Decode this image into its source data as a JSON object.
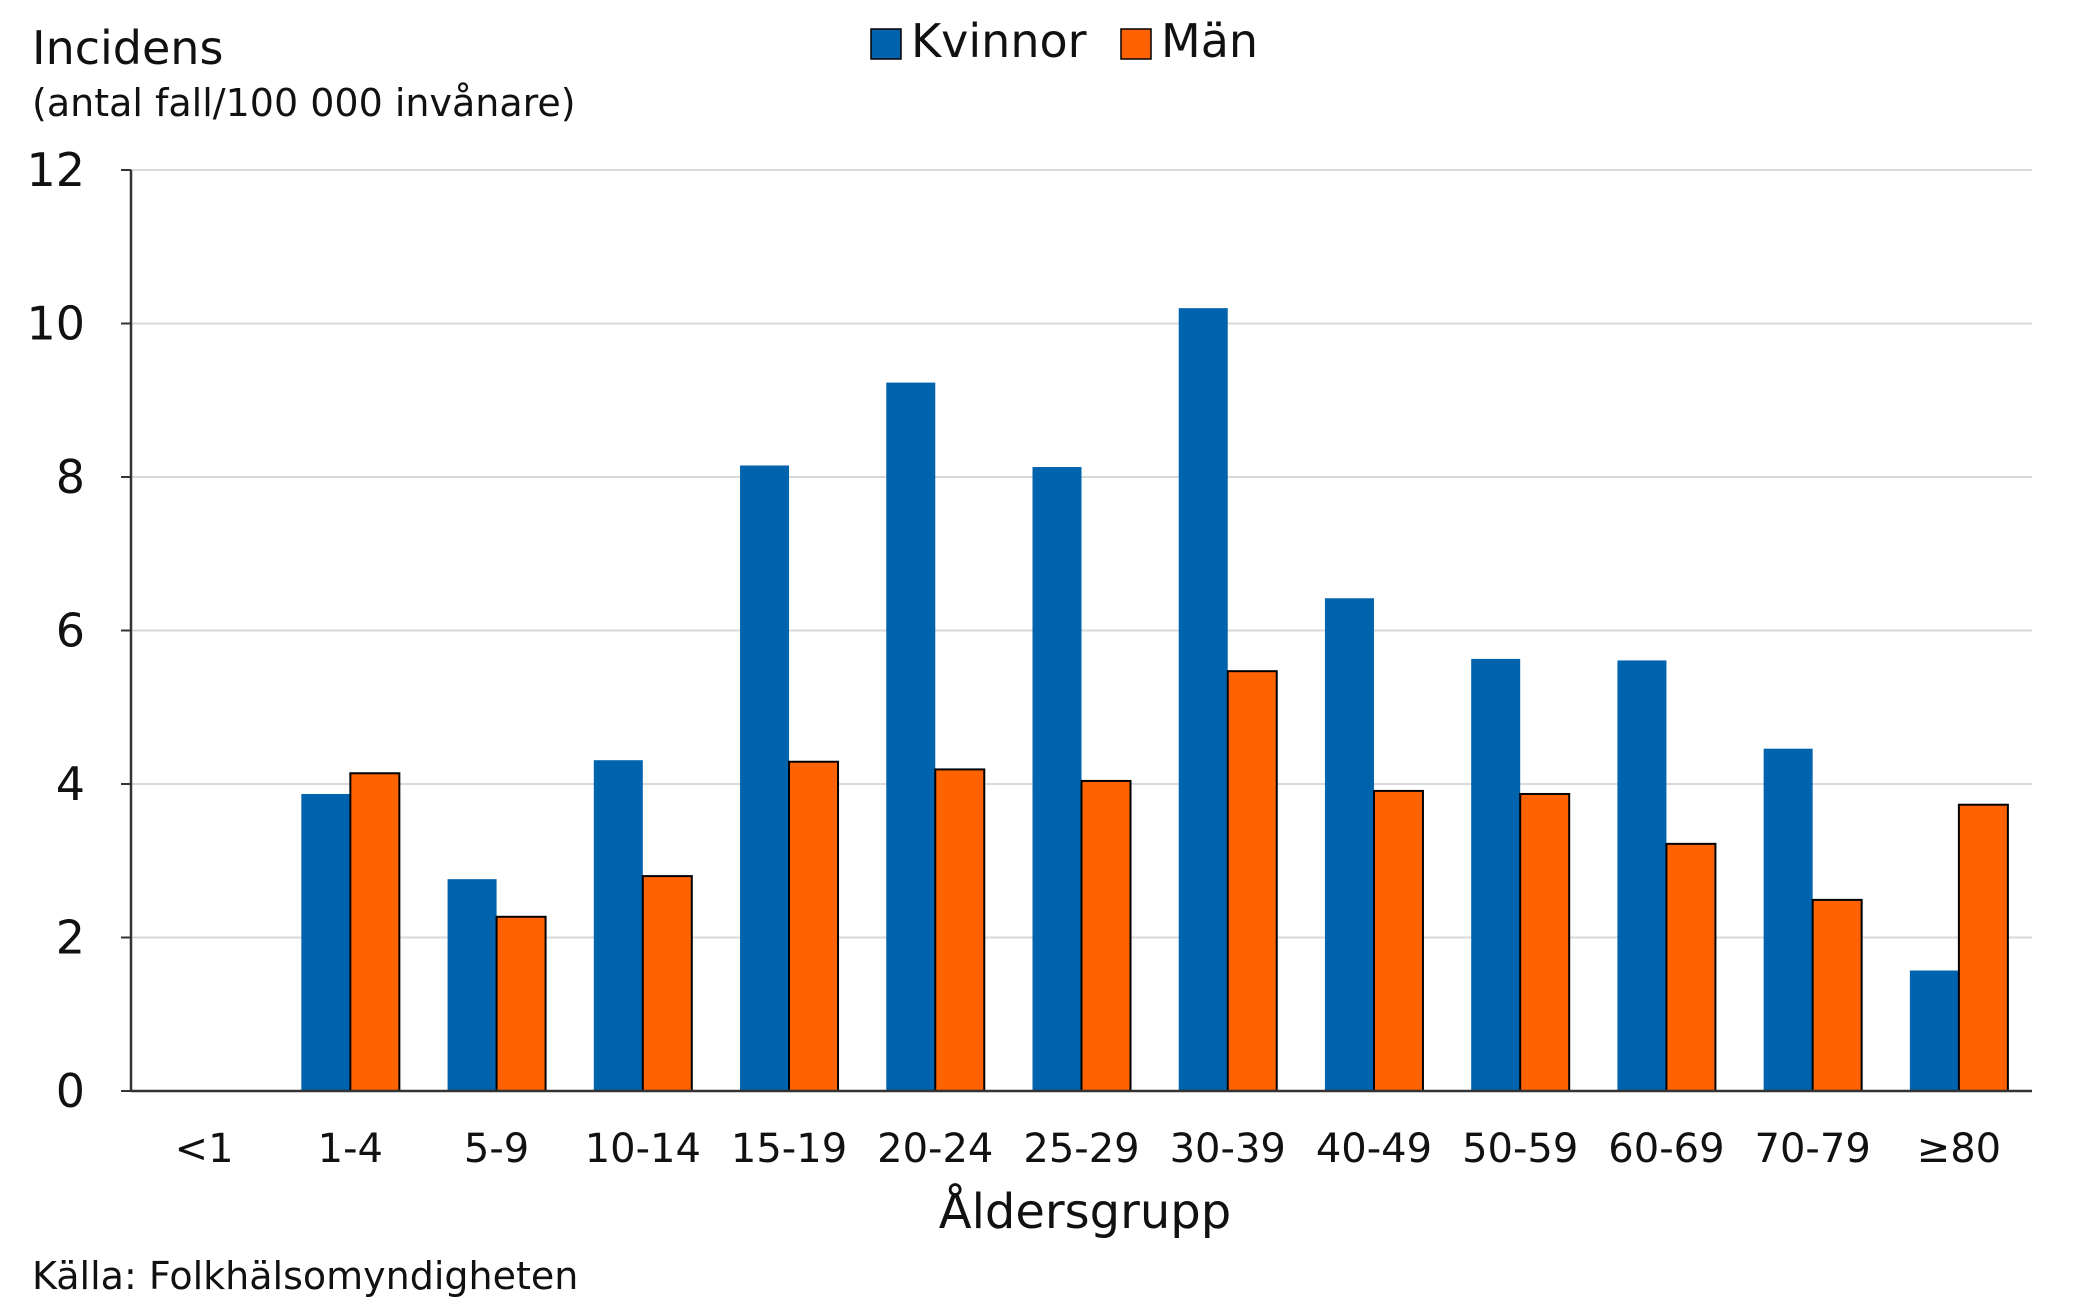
{
  "chart_data": {
    "type": "bar",
    "ylabel": "Incidens",
    "ylabel_sub": "(antal fall/100 000 invånare)",
    "xlabel": "Åldersgrupp",
    "source": "Källa: Folkhälsomyndigheten",
    "ylim": [
      0,
      12
    ],
    "yticks": [
      0,
      2,
      4,
      6,
      8,
      10,
      12
    ],
    "grid": true,
    "legend_position": "top-center",
    "categories": [
      "<1",
      "1-4",
      "5-9",
      "10-14",
      "15-19",
      "20-24",
      "25-29",
      "30-39",
      "40-49",
      "50-59",
      "60-69",
      "70-79",
      "≥80"
    ],
    "series": [
      {
        "name": "Kvinnor",
        "color": "#0063AE",
        "values": [
          0,
          3.87,
          2.76,
          4.31,
          8.15,
          9.23,
          8.13,
          10.2,
          6.42,
          5.63,
          5.61,
          4.46,
          1.57
        ]
      },
      {
        "name": "Män",
        "color": "#FF6200",
        "values": [
          0,
          4.14,
          2.27,
          2.8,
          4.29,
          4.19,
          4.04,
          5.47,
          3.91,
          3.87,
          3.22,
          2.49,
          3.73
        ]
      }
    ]
  }
}
